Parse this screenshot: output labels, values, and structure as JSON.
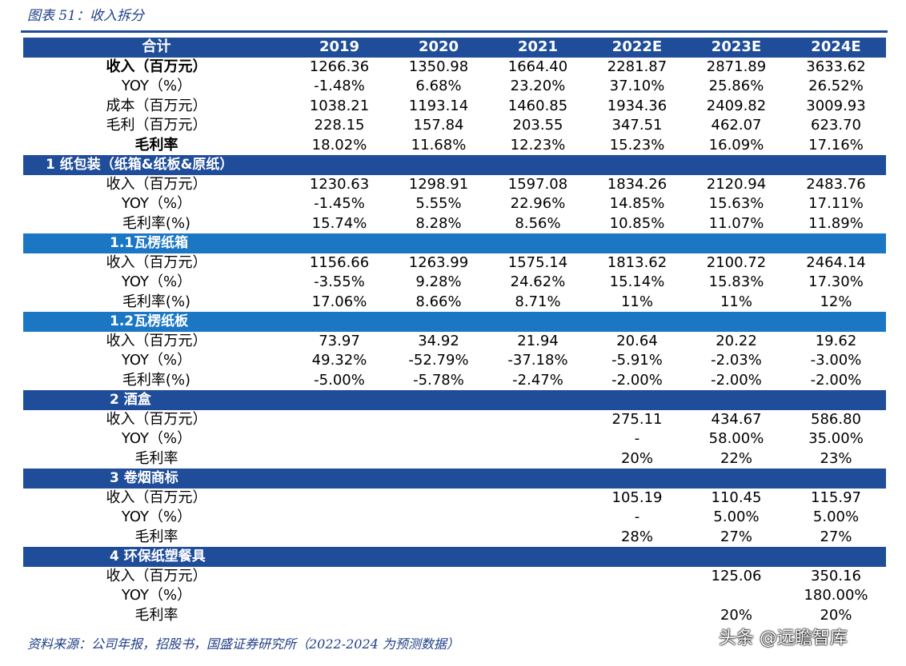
{
  "caption": "图表 51：收入拆分",
  "header": [
    "合计",
    "2019",
    "2020",
    "2021",
    "2022E",
    "2023E",
    "2024E"
  ],
  "total_rows": [
    {
      "label": "收入（百万元）",
      "bold": true,
      "values": [
        "1266.36",
        "1350.98",
        "1664.40",
        "2281.87",
        "2871.89",
        "3633.62"
      ]
    },
    {
      "label": "YOY（%）",
      "bold": false,
      "values": [
        "-1.48%",
        "6.68%",
        "23.20%",
        "37.10%",
        "25.86%",
        "26.52%"
      ]
    },
    {
      "label": "成本（百万元）",
      "bold": false,
      "values": [
        "1038.21",
        "1193.14",
        "1460.85",
        "1934.36",
        "2409.82",
        "3009.93"
      ]
    },
    {
      "label": "毛利（百万元）",
      "bold": false,
      "values": [
        "228.15",
        "157.84",
        "203.55",
        "347.51",
        "462.07",
        "623.70"
      ]
    },
    {
      "label": "毛利率",
      "bold": true,
      "values": [
        "18.02%",
        "11.68%",
        "12.23%",
        "15.23%",
        "16.09%",
        "17.16%"
      ]
    }
  ],
  "sections": [
    {
      "title": "1 纸包装（纸箱&纸板&原纸）",
      "style": "sec",
      "rows": [
        {
          "label": "收入（百万元）",
          "values": [
            "1230.63",
            "1298.91",
            "1597.08",
            "1834.26",
            "2120.94",
            "2483.76"
          ]
        },
        {
          "label": "YOY（%）",
          "values": [
            "-1.45%",
            "5.55%",
            "22.96%",
            "14.85%",
            "15.63%",
            "17.11%"
          ]
        },
        {
          "label": "毛利率(%)",
          "values": [
            "15.74%",
            "8.28%",
            "8.56%",
            "10.85%",
            "11.07%",
            "11.89%"
          ]
        }
      ]
    },
    {
      "title": "1.1瓦楞纸箱",
      "style": "sub",
      "rows": [
        {
          "label": "收入（百万元）",
          "values": [
            "1156.66",
            "1263.99",
            "1575.14",
            "1813.62",
            "2100.72",
            "2464.14"
          ]
        },
        {
          "label": "YOY（%）",
          "values": [
            "-3.55%",
            "9.28%",
            "24.62%",
            "15.14%",
            "15.83%",
            "17.30%"
          ]
        },
        {
          "label": "毛利率(%)",
          "values": [
            "17.06%",
            "8.66%",
            "8.71%",
            "11%",
            "11%",
            "12%"
          ]
        }
      ]
    },
    {
      "title": "1.2瓦楞纸板",
      "style": "sub",
      "rows": [
        {
          "label": "收入（百万元）",
          "values": [
            "73.97",
            "34.92",
            "21.94",
            "20.64",
            "20.22",
            "19.62"
          ]
        },
        {
          "label": "YOY（%）",
          "values": [
            "49.32%",
            "-52.79%",
            "-37.18%",
            "-5.91%",
            "-2.03%",
            "-3.00%"
          ]
        },
        {
          "label": "毛利率(%)",
          "values": [
            "-5.00%",
            "-5.78%",
            "-2.47%",
            "-2.00%",
            "-2.00%",
            "-2.00%"
          ]
        }
      ]
    },
    {
      "title": "2 酒盒",
      "style": "sec2",
      "rows": [
        {
          "label": "收入（百万元）",
          "values": [
            "",
            "",
            "",
            "275.11",
            "434.67",
            "586.80"
          ]
        },
        {
          "label": "YOY（%）",
          "values": [
            "",
            "",
            "",
            "-",
            "58.00%",
            "35.00%"
          ]
        },
        {
          "label": "毛利率",
          "values": [
            "",
            "",
            "",
            "20%",
            "22%",
            "23%"
          ]
        }
      ]
    },
    {
      "title": "3 卷烟商标",
      "style": "sec2",
      "rows": [
        {
          "label": "收入（百万元）",
          "values": [
            "",
            "",
            "",
            "105.19",
            "110.45",
            "115.97"
          ]
        },
        {
          "label": "YOY（%）",
          "values": [
            "",
            "",
            "",
            "-",
            "5.00%",
            "5.00%"
          ]
        },
        {
          "label": "毛利率",
          "values": [
            "",
            "",
            "",
            "28%",
            "27%",
            "27%"
          ]
        }
      ]
    },
    {
      "title": "4 环保纸塑餐具",
      "style": "sec2",
      "rows": [
        {
          "label": "收入（百万元）",
          "values": [
            "",
            "",
            "",
            "",
            "125.06",
            "350.16"
          ]
        },
        {
          "label": "YOY（%）",
          "values": [
            "",
            "",
            "",
            "",
            "",
            "180.00%"
          ]
        },
        {
          "label": "毛利率",
          "values": [
            "",
            "",
            "",
            "",
            "20%",
            "20%"
          ]
        }
      ]
    }
  ],
  "source": "资料来源：公司年报，招股书，国盛证券研究所（2022-2024 为预测数据）",
  "watermark": "头条 @远瞻智库",
  "colors": {
    "header_bg": "#1f4d9a",
    "subheader_bg": "#1b77c4",
    "caption_text": "#1f3f87"
  }
}
